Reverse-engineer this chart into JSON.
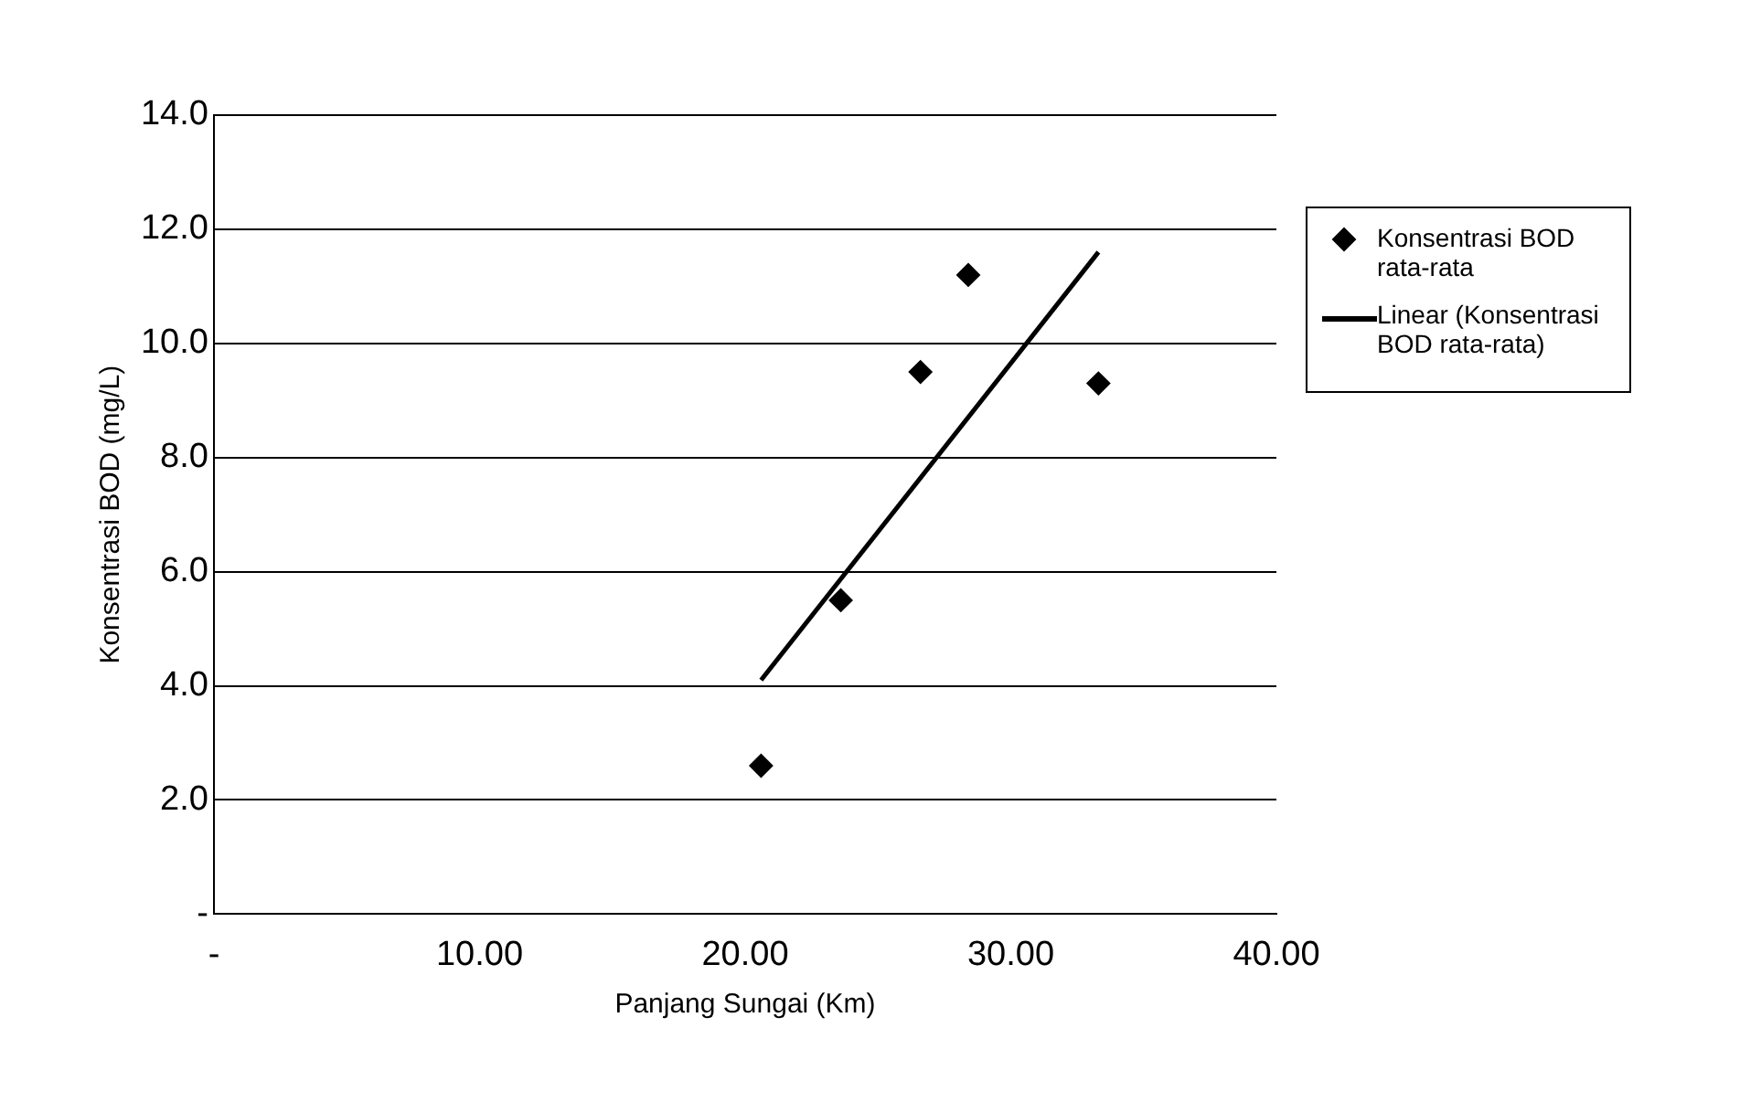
{
  "chart_data": {
    "type": "scatter",
    "xlabel": "Panjang Sungai (Km)",
    "ylabel": "Konsentrasi BOD (mg/L)",
    "xlim": [
      0,
      40
    ],
    "xticks": [
      {
        "value": 0,
        "label": "-"
      },
      {
        "value": 10,
        "label": "10.00"
      },
      {
        "value": 20,
        "label": "20.00"
      },
      {
        "value": 30,
        "label": "30.00"
      },
      {
        "value": 40,
        "label": "40.00"
      }
    ],
    "ylim": [
      0,
      14
    ],
    "yticks": [
      {
        "value": 0,
        "label": "-"
      },
      {
        "value": 2,
        "label": "2.0"
      },
      {
        "value": 4,
        "label": "4.0"
      },
      {
        "value": 6,
        "label": "6.0"
      },
      {
        "value": 8,
        "label": "8.0"
      },
      {
        "value": 10,
        "label": "10.0"
      },
      {
        "value": 12,
        "label": "12.0"
      },
      {
        "value": 14,
        "label": "14.0"
      }
    ],
    "grid": "y",
    "legend": "right",
    "marker": "diamond",
    "series": [
      {
        "name": "Konsentrasi BOD rata-rata",
        "color": "#000000",
        "x": [
          20.6,
          23.6,
          26.6,
          28.4,
          33.3
        ],
        "values": [
          2.6,
          5.5,
          9.5,
          11.2,
          9.3
        ]
      },
      {
        "name": "Linear (Konsentrasi BOD rata-rata)",
        "type": "line",
        "color": "#000000",
        "marker": "none",
        "line_style": "solid",
        "x": [
          20.6,
          33.3
        ],
        "values": [
          4.1,
          11.6
        ]
      }
    ]
  }
}
